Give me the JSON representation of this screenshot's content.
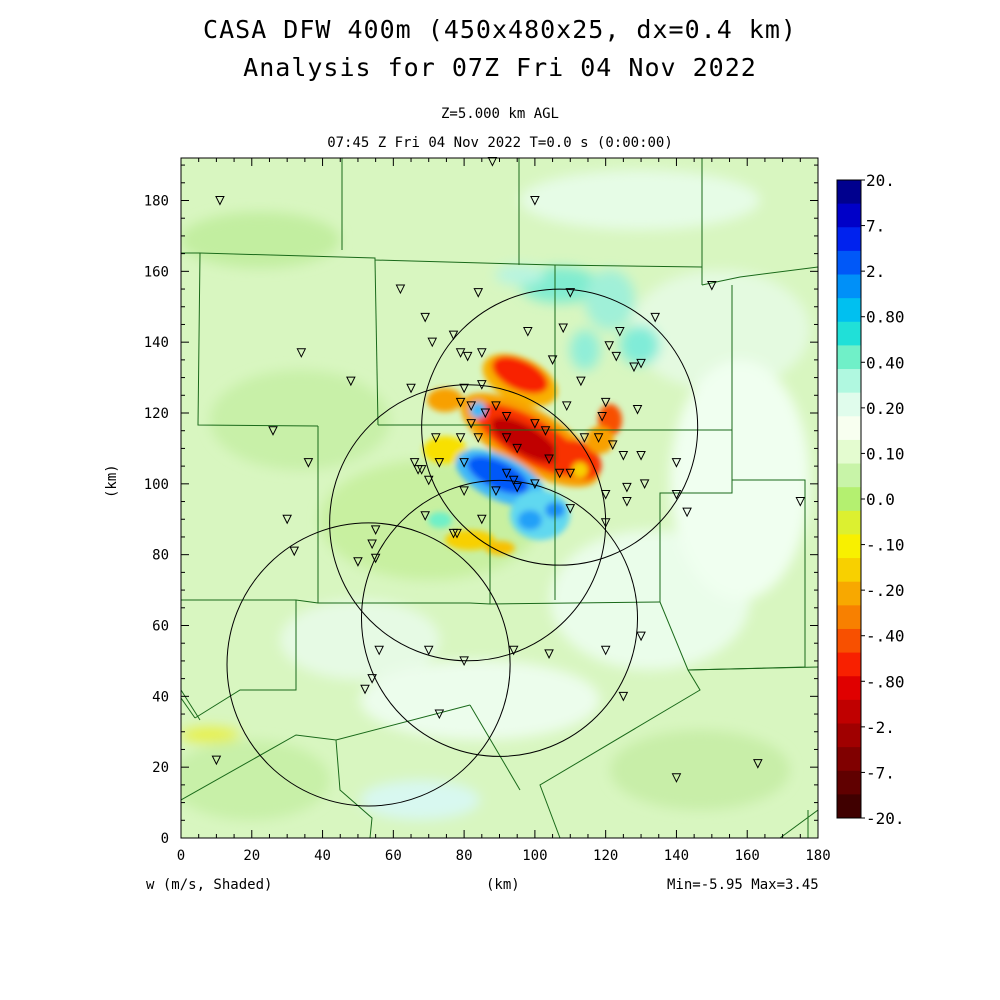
{
  "title_line1": "CASA DFW 400m (450x480x25, dx=0.4 km)",
  "title_line2": "Analysis for 07Z Fri 04 Nov 2022",
  "subtitle_line1": "Z=5.000 km AGL",
  "subtitle_line2": "07:45 Z Fri 04 Nov 2022    T=0.0 s (0:00:00)",
  "footer_left": "w (m/s, Shaded)",
  "footer_right": "Min=-5.95 Max=3.45",
  "chart_data": {
    "type": "heatmap",
    "xlabel": "(km)",
    "ylabel": "(km)",
    "xlim": [
      0,
      180
    ],
    "ylim": [
      0,
      192
    ],
    "xticks": [
      "0",
      "20",
      "40",
      "60",
      "80",
      "100",
      "120",
      "140",
      "160",
      "180"
    ],
    "yticks": [
      "0",
      "20",
      "40",
      "60",
      "80",
      "100",
      "120",
      "140",
      "160",
      "180"
    ],
    "colorbar": {
      "labels": [
        "20.",
        "7.",
        "2.",
        "0.80",
        "0.40",
        "0.20",
        "0.10",
        "0.0",
        "-.10",
        "-.20",
        "-.40",
        "-.80",
        "-2.",
        "-7.",
        "-20."
      ],
      "colors": [
        "#00008e",
        "#0000c8",
        "#0022ee",
        "#0058f8",
        "#0090f8",
        "#00c0f0",
        "#20e0d8",
        "#70f0c8",
        "#b0f8e0",
        "#e0fcec",
        "#f8fff0",
        "#e4fcd0",
        "#c8f4a8",
        "#b4f070",
        "#dcf030",
        "#f8f000",
        "#f8d000",
        "#f8a800",
        "#f88000",
        "#f85000",
        "#f82000",
        "#e00000",
        "#c00000",
        "#a00000",
        "#800000",
        "#600000",
        "#400000"
      ]
    },
    "radar_rings": [
      {
        "cx": 107,
        "cy": 116,
        "r": 39
      },
      {
        "cx": 81,
        "cy": 89,
        "r": 39
      },
      {
        "cx": 90,
        "cy": 62,
        "r": 39
      },
      {
        "cx": 53,
        "cy": 49,
        "r": 40
      }
    ],
    "stations": [
      [
        88,
        191
      ],
      [
        11,
        180
      ],
      [
        100,
        180
      ],
      [
        150,
        156
      ],
      [
        62,
        155
      ],
      [
        84,
        154
      ],
      [
        110,
        154
      ],
      [
        69,
        147
      ],
      [
        134,
        147
      ],
      [
        108,
        144
      ],
      [
        98,
        143
      ],
      [
        124,
        143
      ],
      [
        71,
        140
      ],
      [
        77,
        142
      ],
      [
        121,
        139
      ],
      [
        79,
        137
      ],
      [
        85,
        137
      ],
      [
        81,
        136
      ],
      [
        123,
        136
      ],
      [
        34,
        137
      ],
      [
        128,
        133
      ],
      [
        130,
        134
      ],
      [
        105,
        135
      ],
      [
        48,
        129
      ],
      [
        113,
        129
      ],
      [
        65,
        127
      ],
      [
        80,
        127
      ],
      [
        85,
        128
      ],
      [
        79,
        123
      ],
      [
        82,
        122
      ],
      [
        89,
        122
      ],
      [
        109,
        122
      ],
      [
        120,
        123
      ],
      [
        119,
        119
      ],
      [
        129,
        121
      ],
      [
        82,
        117
      ],
      [
        86,
        120
      ],
      [
        92,
        119
      ],
      [
        100,
        117
      ],
      [
        103,
        115
      ],
      [
        26,
        115
      ],
      [
        72,
        113
      ],
      [
        79,
        113
      ],
      [
        84,
        113
      ],
      [
        92,
        113
      ],
      [
        114,
        113
      ],
      [
        118,
        113
      ],
      [
        95,
        110
      ],
      [
        122,
        111
      ],
      [
        104,
        107
      ],
      [
        125,
        108
      ],
      [
        130,
        108
      ],
      [
        107,
        103
      ],
      [
        110,
        103
      ],
      [
        36,
        106
      ],
      [
        66,
        106
      ],
      [
        73,
        106
      ],
      [
        80,
        106
      ],
      [
        140,
        106
      ],
      [
        67,
        104
      ],
      [
        68,
        104
      ],
      [
        70,
        101
      ],
      [
        92,
        103
      ],
      [
        94,
        101
      ],
      [
        100,
        100
      ],
      [
        126,
        99
      ],
      [
        131,
        100
      ],
      [
        80,
        98
      ],
      [
        89,
        98
      ],
      [
        95,
        99
      ],
      [
        120,
        97
      ],
      [
        140,
        97
      ],
      [
        175,
        95
      ],
      [
        126,
        95
      ],
      [
        143,
        92
      ],
      [
        110,
        93
      ],
      [
        69,
        91
      ],
      [
        85,
        90
      ],
      [
        30,
        90
      ],
      [
        120,
        89
      ],
      [
        77,
        86
      ],
      [
        78,
        86
      ],
      [
        55,
        87
      ],
      [
        54,
        83
      ],
      [
        32,
        81
      ],
      [
        55,
        79
      ],
      [
        50,
        78
      ],
      [
        130,
        57
      ],
      [
        56,
        53
      ],
      [
        70,
        53
      ],
      [
        80,
        50
      ],
      [
        94,
        53
      ],
      [
        104,
        52
      ],
      [
        120,
        53
      ],
      [
        54,
        45
      ],
      [
        52,
        42
      ],
      [
        125,
        40
      ],
      [
        73,
        35
      ],
      [
        10,
        22
      ],
      [
        140,
        17
      ],
      [
        163,
        21
      ]
    ]
  }
}
